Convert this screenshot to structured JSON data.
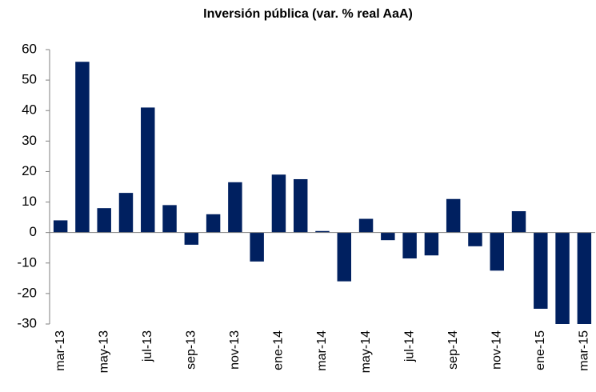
{
  "chart_data": {
    "type": "bar",
    "title": "Inversión pública (var. % real AaA)",
    "categories": [
      "mar-13",
      null,
      "may-13",
      null,
      "jul-13",
      null,
      "sep-13",
      null,
      "nov-13",
      null,
      "ene-14",
      null,
      "mar-14",
      null,
      "may-14",
      null,
      "jul-14",
      null,
      "sep-14",
      null,
      "nov-14",
      null,
      "ene-15",
      null,
      "mar-15"
    ],
    "values": [
      4,
      56,
      8,
      13,
      41,
      9,
      -4,
      6,
      16.5,
      -9.5,
      19,
      17.5,
      0.5,
      -16,
      4.5,
      -2.5,
      -8.5,
      -7.5,
      11,
      -4.5,
      -12.5,
      7,
      -25,
      -30,
      -30
    ],
    "color": "#002060",
    "ylim": [
      -30,
      60
    ],
    "yticks": [
      -30,
      -20,
      -10,
      0,
      10,
      20,
      30,
      40,
      50,
      60
    ],
    "grid": false
  }
}
